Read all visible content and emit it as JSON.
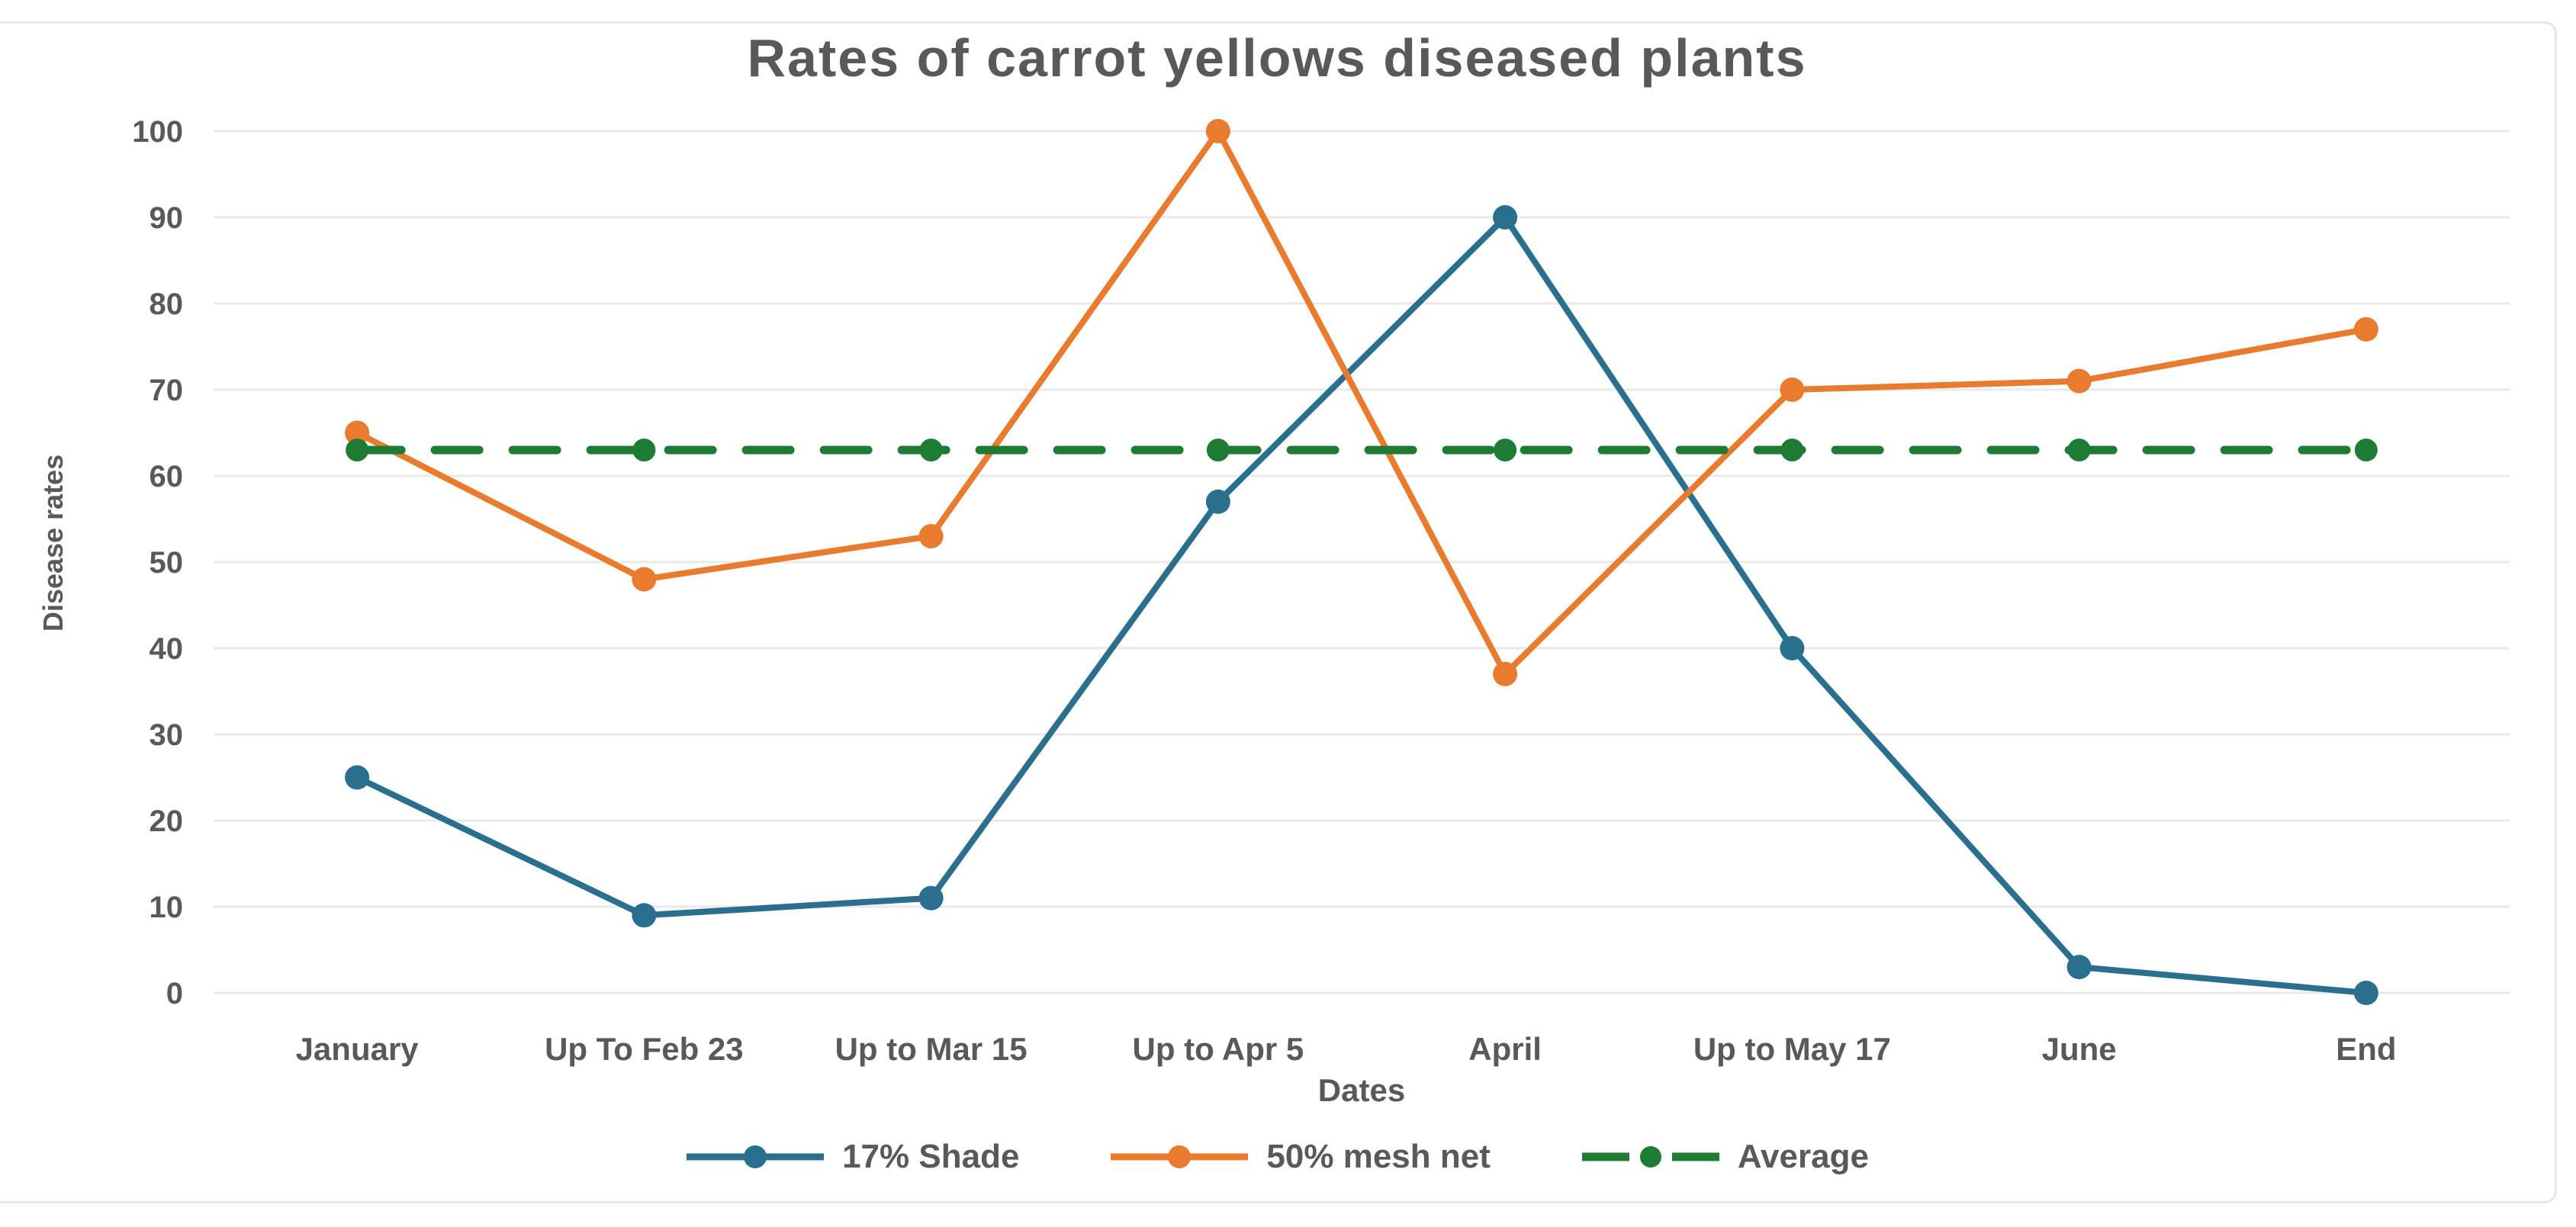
{
  "chart_data": {
    "type": "line",
    "title": "Rates of carrot yellows diseased plants",
    "xlabel": "Dates",
    "ylabel": "Disease rates",
    "categories": [
      "January",
      "Up To Feb 23",
      "Up to Mar 15",
      "Up to Apr 5",
      "April",
      "Up to May 17",
      "June",
      "End"
    ],
    "series": [
      {
        "name": "17% Shade",
        "color": "#2a6f8e",
        "dashed": false,
        "values": [
          25,
          9,
          11,
          57,
          90,
          40,
          3,
          0
        ]
      },
      {
        "name": "50% mesh net",
        "color": "#e87b2d",
        "dashed": false,
        "values": [
          65,
          48,
          53,
          100,
          37,
          70,
          71,
          77
        ]
      },
      {
        "name": "Average",
        "color": "#1e7b33",
        "dashed": true,
        "values": [
          63,
          63,
          63,
          63,
          63,
          63,
          63,
          63
        ]
      }
    ],
    "ylim": [
      0,
      100
    ],
    "ytick_step": 10,
    "yticks": [
      0,
      10,
      20,
      30,
      40,
      50,
      60,
      70,
      80,
      90,
      100
    ],
    "grid": true,
    "legend_position": "bottom"
  },
  "styles": {
    "text_color": "#595959",
    "grid_color": "#eaeaea",
    "frame_border_color": "#e7e7e7",
    "background": "#ffffff"
  }
}
